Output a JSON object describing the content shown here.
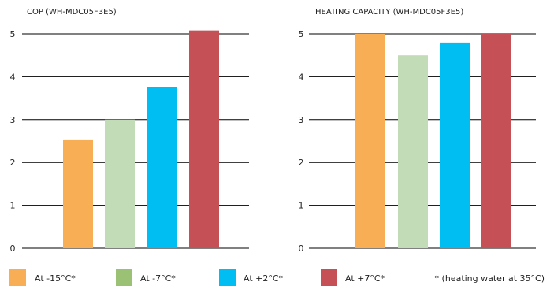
{
  "colors": {
    "orange": "#f8ae55",
    "light_green": "#c2dcb8",
    "cyan": "#00bdf2",
    "red": "#c55055",
    "legend_green": "#9bc274"
  },
  "chart_data": [
    {
      "type": "bar",
      "title": "COP (WH-MDC05F3E5)",
      "categories": [
        "At -15°C*",
        "At -7°C*",
        "At +2°C*",
        "At +7°C*"
      ],
      "values": [
        2.52,
        3.0,
        3.75,
        5.08
      ],
      "ylim": [
        0,
        5
      ],
      "yticks": [
        0,
        1,
        2,
        3,
        4,
        5
      ],
      "grid": true,
      "xlabel": "",
      "ylabel": ""
    },
    {
      "type": "bar",
      "title": "HEATING CAPACITY (WH-MDC05F3E5)",
      "categories": [
        "At -15°C*",
        "At -7°C*",
        "At +2°C*",
        "At +7°C*"
      ],
      "values": [
        5.0,
        4.5,
        4.8,
        5.0
      ],
      "ylim": [
        0,
        5
      ],
      "yticks": [
        0,
        1,
        2,
        3,
        4,
        5
      ],
      "grid": true,
      "xlabel": "",
      "ylabel": ""
    }
  ],
  "legend": {
    "placement": "bottom",
    "items": [
      {
        "label": "At -15°C*",
        "color": "#f8ae55"
      },
      {
        "label": "At -7°C*",
        "color": "#9bc274"
      },
      {
        "label": "At +2°C*",
        "color": "#00bdf2"
      },
      {
        "label": "At +7°C*",
        "color": "#c55055"
      }
    ],
    "note": "* (heating water at 35°C)"
  }
}
